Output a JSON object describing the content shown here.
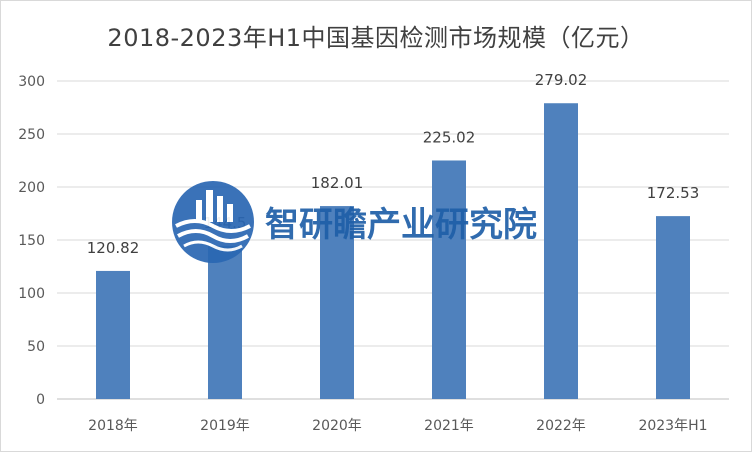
{
  "chart_data": {
    "type": "bar",
    "title": "2018-2023年H1中国基因检测市场规模（亿元）",
    "categories": [
      "2018年",
      "2019年",
      "2020年",
      "2021年",
      "2022年",
      "2023年H1"
    ],
    "values": [
      120.82,
      144.5,
      182.01,
      225.02,
      279.02,
      172.53
    ],
    "value_labels": [
      "120.82",
      "144.5",
      "182.01",
      "225.02",
      "279.02",
      "172.53"
    ],
    "ylim": [
      0,
      300
    ],
    "yticks": [
      0,
      50,
      100,
      150,
      200,
      250,
      300
    ],
    "grid": true,
    "legend": "none",
    "bar_color": "#4f81bd"
  },
  "watermark": {
    "text": "智研瞻产业研究院",
    "logo_icon": "building-wave-logo-icon",
    "color": "#1f5fa8"
  }
}
